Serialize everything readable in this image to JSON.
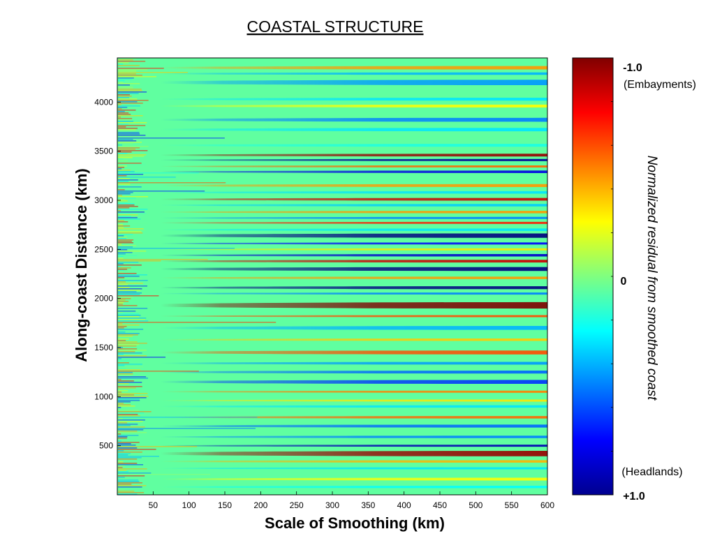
{
  "chart_data": {
    "type": "heatmap",
    "title": "COASTAL STRUCTURE",
    "xlabel": "Scale of Smoothing (km)",
    "ylabel": "Along-coast Distance (km)",
    "xlim": [
      0,
      600
    ],
    "ylim": [
      0,
      4450
    ],
    "x_ticks": [
      50,
      100,
      150,
      200,
      250,
      300,
      350,
      400,
      450,
      500,
      550,
      600
    ],
    "y_ticks": [
      500,
      1000,
      1500,
      2000,
      2500,
      3000,
      3500,
      4000
    ],
    "colorbar": {
      "label": "Normalized residual from smoothed coast",
      "range": [
        -1.0,
        1.0
      ],
      "reversed": true,
      "top_value": "-1.0",
      "top_note": "(Embayments)",
      "mid_value": "0",
      "bottom_note": "(Headlands)",
      "bottom_value": "+1.0",
      "colormap": "jet"
    },
    "bands": [
      {
        "y": 4350,
        "width": 35,
        "value": -0.45
      },
      {
        "y": 4290,
        "width": 25,
        "value": 0.4
      },
      {
        "y": 4200,
        "width": 55,
        "value": 0.45
      },
      {
        "y": 4030,
        "width": 30,
        "value": 0.3
      },
      {
        "y": 3960,
        "width": 30,
        "value": -0.25
      },
      {
        "y": 3820,
        "width": 40,
        "value": 0.5
      },
      {
        "y": 3720,
        "width": 35,
        "value": 0.3
      },
      {
        "y": 3560,
        "width": 30,
        "value": 0.2
      },
      {
        "y": 3460,
        "width": 28,
        "value": -0.95
      },
      {
        "y": 3410,
        "width": 22,
        "value": 0.95
      },
      {
        "y": 3345,
        "width": 20,
        "value": -0.55
      },
      {
        "y": 3290,
        "width": 25,
        "value": 0.8
      },
      {
        "y": 3150,
        "width": 30,
        "value": -0.45
      },
      {
        "y": 3080,
        "width": 25,
        "value": 0.3
      },
      {
        "y": 3010,
        "width": 28,
        "value": -0.85
      },
      {
        "y": 2950,
        "width": 25,
        "value": 0.35
      },
      {
        "y": 2880,
        "width": 25,
        "value": -0.45
      },
      {
        "y": 2820,
        "width": 20,
        "value": 0.5
      },
      {
        "y": 2770,
        "width": 18,
        "value": -0.7
      },
      {
        "y": 2700,
        "width": 25,
        "value": 0.3
      },
      {
        "y": 2640,
        "width": 45,
        "value": 1.0
      },
      {
        "y": 2560,
        "width": 18,
        "value": 0.75
      },
      {
        "y": 2500,
        "width": 22,
        "value": -0.3
      },
      {
        "y": 2440,
        "width": 25,
        "value": 0.85
      },
      {
        "y": 2380,
        "width": 28,
        "value": -0.85
      },
      {
        "y": 2300,
        "width": 40,
        "value": 1.0
      },
      {
        "y": 2210,
        "width": 25,
        "value": -0.45
      },
      {
        "y": 2110,
        "width": 30,
        "value": 1.0
      },
      {
        "y": 2050,
        "width": 20,
        "value": 0.5
      },
      {
        "y": 1930,
        "width": 65,
        "value": -1.0
      },
      {
        "y": 1820,
        "width": 20,
        "value": -0.6
      },
      {
        "y": 1700,
        "width": 40,
        "value": 0.4
      },
      {
        "y": 1580,
        "width": 25,
        "value": -0.35
      },
      {
        "y": 1450,
        "width": 40,
        "value": -0.6
      },
      {
        "y": 1340,
        "width": 28,
        "value": 0.45
      },
      {
        "y": 1250,
        "width": 30,
        "value": 0.55
      },
      {
        "y": 1150,
        "width": 40,
        "value": 0.65
      },
      {
        "y": 1050,
        "width": 22,
        "value": -0.5
      },
      {
        "y": 960,
        "width": 20,
        "value": -0.3
      },
      {
        "y": 900,
        "width": 25,
        "value": 0.3
      },
      {
        "y": 790,
        "width": 25,
        "value": -0.55
      },
      {
        "y": 700,
        "width": 30,
        "value": 0.55
      },
      {
        "y": 590,
        "width": 25,
        "value": 0.5
      },
      {
        "y": 500,
        "width": 20,
        "value": 0.9
      },
      {
        "y": 420,
        "width": 55,
        "value": -0.95
      },
      {
        "y": 340,
        "width": 25,
        "value": -0.4
      },
      {
        "y": 270,
        "width": 20,
        "value": 0.3
      },
      {
        "y": 160,
        "width": 28,
        "value": -0.25
      },
      {
        "y": 80,
        "width": 25,
        "value": 0.25
      }
    ]
  }
}
